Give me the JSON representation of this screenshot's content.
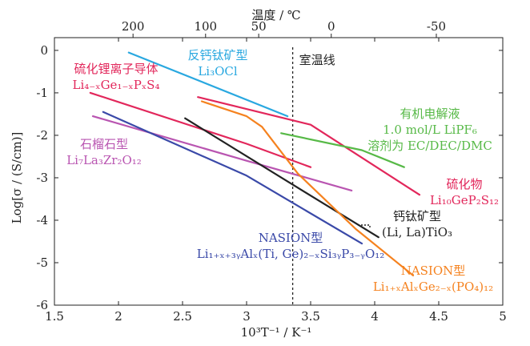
{
  "chart_data": {
    "type": "line",
    "xlabel": "10³T⁻¹ / K⁻¹",
    "ylabel": "Log[σ / (S/cm)]",
    "top_xlabel": "温度 / ℃",
    "xlim": [
      1.5,
      5
    ],
    "ylim": [
      -6,
      0.3
    ],
    "x_ticks": [
      "1.5",
      "2",
      "2.5",
      "3",
      "3.5",
      "4",
      "4.5",
      "5"
    ],
    "y_ticks": [
      "0",
      "-1",
      "-2",
      "-3",
      "-4",
      "-5",
      "-6"
    ],
    "top_ticks": [
      {
        "label": "200",
        "value": 200
      },
      {
        "label": "100",
        "value": 100
      },
      {
        "label": "50",
        "value": 50
      },
      {
        "label": "0",
        "value": 0
      },
      {
        "label": "-50",
        "value": -50
      }
    ],
    "room_temp": {
      "x": 3.36,
      "label": "室温线"
    },
    "series": [
      {
        "color": "#29a8e0",
        "points": [
          [
            2.08,
            -0.05
          ],
          [
            3.32,
            -1.55
          ]
        ]
      },
      {
        "color": "#e2275b",
        "points": [
          [
            1.78,
            -1.0
          ],
          [
            3.0,
            -2.2
          ],
          [
            3.5,
            -2.75
          ]
        ]
      },
      {
        "color": "#e2275b",
        "points": [
          [
            2.62,
            -1.1
          ],
          [
            3.5,
            -1.75
          ],
          [
            4.35,
            -3.4
          ]
        ]
      },
      {
        "color": "#57b947",
        "points": [
          [
            3.27,
            -1.95
          ],
          [
            3.9,
            -2.35
          ],
          [
            4.23,
            -2.75
          ]
        ]
      },
      {
        "color": "#b955b1",
        "points": [
          [
            1.8,
            -1.55
          ],
          [
            3.0,
            -2.6
          ],
          [
            3.82,
            -3.3
          ]
        ]
      },
      {
        "color": "#3a49a8",
        "points": [
          [
            1.88,
            -1.45
          ],
          [
            3.0,
            -2.95
          ],
          [
            3.9,
            -4.55
          ]
        ]
      },
      {
        "color": "#222222",
        "points": [
          [
            2.52,
            -1.6
          ],
          [
            3.3,
            -3.05
          ],
          [
            4.03,
            -4.4
          ]
        ]
      },
      {
        "color": "#f5821f",
        "points": [
          [
            2.65,
            -1.2
          ],
          [
            3.0,
            -1.55
          ],
          [
            3.12,
            -1.8
          ],
          [
            3.4,
            -2.9
          ],
          [
            3.85,
            -4.2
          ],
          [
            4.3,
            -5.3
          ]
        ]
      }
    ],
    "annotations": [
      {
        "lines": [
          "反钙钛矿型",
          "Li₃OCl"
        ],
        "color": "#29a8e0"
      },
      {
        "lines": [
          "硫化锂离子导体",
          "Li₄₋ₓGe₁₋ₓPₓS₄"
        ],
        "color": "#e2275b"
      },
      {
        "lines": [
          "有机电解液",
          "1.0 mol/L LiPF₆",
          "溶剂为 EC/DEC/DMC"
        ],
        "color": "#57b947"
      },
      {
        "lines": [
          "石榴石型",
          "Li₇La₃Zr₂O₁₂"
        ],
        "color": "#b955b1"
      },
      {
        "lines": [
          "硫化物",
          "Li₁₀GeP₂S₁₂"
        ],
        "color": "#e2275b"
      },
      {
        "lines": [
          "钙钛矿型",
          "(Li, La)TiO₃"
        ],
        "color": "#222222"
      },
      {
        "lines": [
          "NASION型",
          "Li₁₊ₓ₊₃ᵧAlₓ(Ti, Ge)₂₋ₓSi₃ᵧP₃₋ᵧO₁₂"
        ],
        "color": "#3a49a8"
      },
      {
        "lines": [
          "NASION型",
          "Li₁₊ₓAlₓGe₂₋ₓ(PO₄)₁₂"
        ],
        "color": "#f5821f"
      }
    ]
  }
}
